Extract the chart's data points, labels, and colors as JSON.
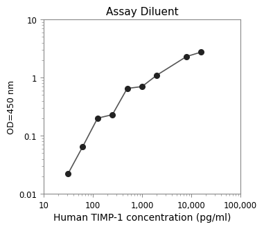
{
  "title": "Assay Diluent",
  "xlabel": "Human TIMP-1 concentration (pg/ml)",
  "ylabel": "OD=450 nm",
  "x_pts": [
    31.25,
    62.5,
    125,
    250,
    500,
    1000,
    2000,
    8000,
    16000
  ],
  "y_pts": [
    0.022,
    0.065,
    0.2,
    0.23,
    0.65,
    0.7,
    1.1,
    2.3,
    2.75
  ],
  "xlim": [
    10,
    100000
  ],
  "ylim": [
    0.01,
    10
  ],
  "line_color": "#555555",
  "marker_color": "#222222",
  "marker_size": 5.5,
  "title_fontsize": 11,
  "xlabel_fontsize": 10,
  "ylabel_fontsize": 9,
  "tick_labelsize": 8.5,
  "xlabel_color": "#000000",
  "ylabel_color": "#000000",
  "title_color": "#000000",
  "bg_color": "#ffffff"
}
